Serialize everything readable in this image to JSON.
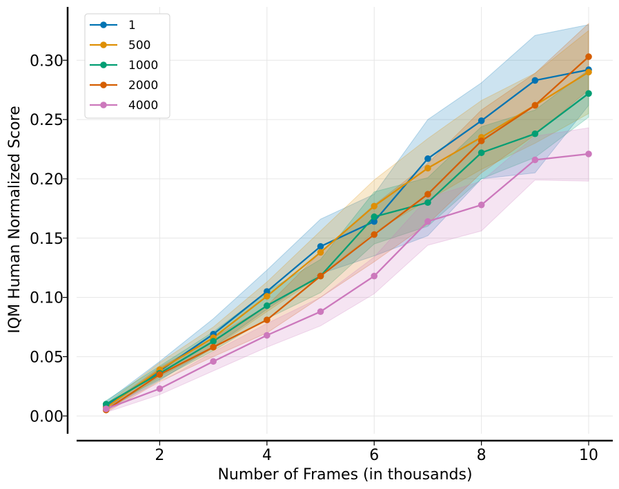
{
  "chart_data": {
    "type": "line",
    "title": "",
    "xlabel": "Number of Frames (in thousands)",
    "ylabel": "IQM Human Normalized Score",
    "xlim": [
      0.45,
      10.45
    ],
    "ylim": [
      -0.015,
      0.345
    ],
    "xticks": [
      2,
      4,
      6,
      8,
      10
    ],
    "yticks": [
      0.0,
      0.05,
      0.1,
      0.15,
      0.2,
      0.25,
      0.3
    ],
    "ytick_labels": [
      "0.00",
      "0.05",
      "0.10",
      "0.15",
      "0.20",
      "0.25",
      "0.30"
    ],
    "grid": true,
    "legend_position": "top-left",
    "x": [
      1,
      2,
      3,
      4,
      5,
      6,
      7,
      8,
      9,
      10
    ],
    "series": [
      {
        "name": "1",
        "color": "#0173b2",
        "values": [
          0.008,
          0.038,
          0.069,
          0.105,
          0.143,
          0.164,
          0.217,
          0.249,
          0.283,
          0.292
        ],
        "lower": [
          0.005,
          0.03,
          0.058,
          0.09,
          0.12,
          0.135,
          0.152,
          0.2,
          0.205,
          0.262
        ],
        "upper": [
          0.012,
          0.046,
          0.082,
          0.123,
          0.166,
          0.187,
          0.25,
          0.281,
          0.321,
          0.33
        ]
      },
      {
        "name": "500",
        "color": "#de8f05",
        "values": [
          0.007,
          0.039,
          0.066,
          0.101,
          0.138,
          0.177,
          0.209,
          0.235,
          0.262,
          0.29
        ],
        "lower": [
          0.004,
          0.033,
          0.057,
          0.088,
          0.118,
          0.155,
          0.182,
          0.208,
          0.23,
          0.255
        ],
        "upper": [
          0.01,
          0.045,
          0.075,
          0.113,
          0.156,
          0.199,
          0.234,
          0.266,
          0.289,
          0.325
        ]
      },
      {
        "name": "1000",
        "color": "#029e73",
        "values": [
          0.01,
          0.036,
          0.063,
          0.093,
          0.118,
          0.168,
          0.18,
          0.222,
          0.238,
          0.272
        ],
        "lower": [
          0.007,
          0.031,
          0.055,
          0.082,
          0.104,
          0.145,
          0.16,
          0.2,
          0.218,
          0.252
        ],
        "upper": [
          0.013,
          0.042,
          0.071,
          0.105,
          0.132,
          0.189,
          0.201,
          0.244,
          0.258,
          0.292
        ]
      },
      {
        "name": "2000",
        "color": "#d55e00",
        "values": [
          0.005,
          0.035,
          0.058,
          0.081,
          0.118,
          0.153,
          0.187,
          0.232,
          0.262,
          0.303
        ],
        "lower": [
          0.003,
          0.029,
          0.05,
          0.07,
          0.1,
          0.13,
          0.162,
          0.205,
          0.237,
          0.275
        ],
        "upper": [
          0.008,
          0.041,
          0.066,
          0.093,
          0.138,
          0.178,
          0.213,
          0.258,
          0.289,
          0.331
        ]
      },
      {
        "name": "4000",
        "color": "#cc78bc",
        "values": [
          0.006,
          0.023,
          0.046,
          0.068,
          0.088,
          0.118,
          0.164,
          0.178,
          0.216,
          0.221
        ],
        "lower": [
          0.003,
          0.018,
          0.038,
          0.058,
          0.076,
          0.103,
          0.144,
          0.156,
          0.199,
          0.198
        ],
        "upper": [
          0.009,
          0.028,
          0.054,
          0.078,
          0.1,
          0.134,
          0.184,
          0.198,
          0.236,
          0.243
        ]
      }
    ]
  }
}
